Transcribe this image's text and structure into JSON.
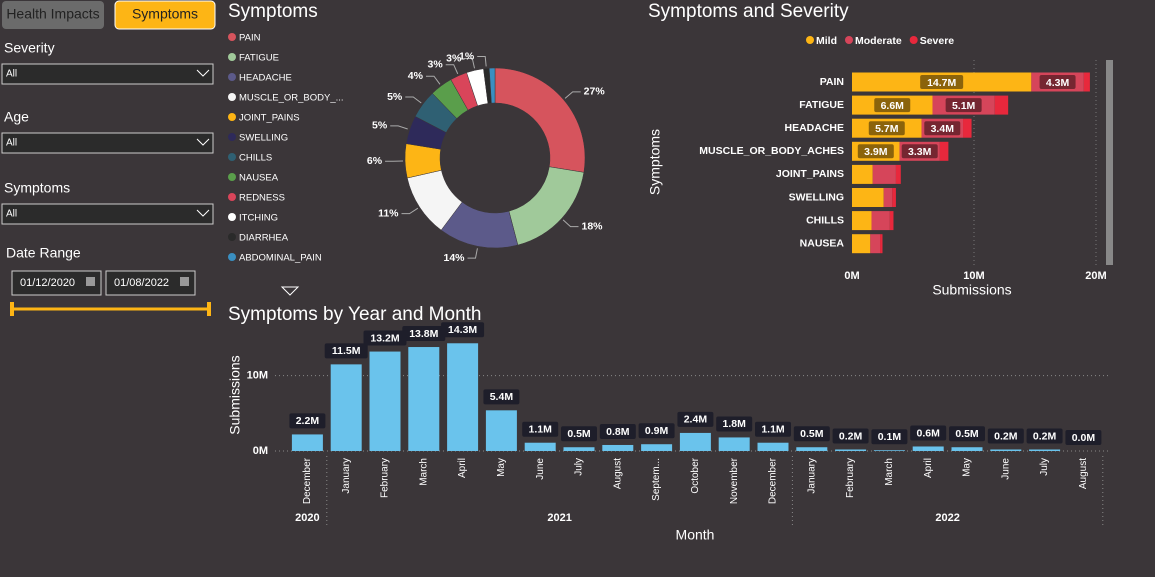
{
  "tabs": [
    "Health Impacts",
    "Symptoms"
  ],
  "filters": [
    {
      "label": "Severity",
      "value": "All"
    },
    {
      "label": "Age",
      "value": "All"
    },
    {
      "label": "Symptoms",
      "value": "All"
    }
  ],
  "date_range": {
    "label": "Date Range",
    "start": "01/12/2020",
    "end": "01/08/2022"
  },
  "chart_data": [
    {
      "type": "pie",
      "title": "Symptoms",
      "donut": true,
      "categories": [
        "PAIN",
        "FATIGUE",
        "HEADACHE",
        "MUSCLE_OR_BODY_...",
        "JOINT_PAINS",
        "SWELLING",
        "CHILLS",
        "NAUSEA",
        "REDNESS",
        "ITCHING",
        "DIARRHEA",
        "ABDOMINAL_PAIN"
      ],
      "values": [
        27,
        18,
        14,
        11,
        6,
        5,
        5,
        4,
        3,
        3,
        1,
        1
      ],
      "value_labels": [
        "27%",
        "18%",
        "14%",
        "11%",
        "6%",
        "5%",
        "5%",
        "4%",
        "3%",
        "3%",
        "1%",
        null
      ],
      "colors": [
        "#d6545d",
        "#a0c99a",
        "#5c5a8a",
        "#f5f5f5",
        "#fdb515",
        "#2e2a5a",
        "#2f6073",
        "#5a9e4b",
        "#d9455a",
        "#ffffff",
        "#2a2a2a",
        "#3a8fc1"
      ]
    },
    {
      "type": "hbar",
      "stacked": true,
      "title": "Symptoms and Severity",
      "x_label": "Submissions",
      "y_label": "Symptoms",
      "legend": "top",
      "categories": [
        "PAIN",
        "FATIGUE",
        "HEADACHE",
        "MUSCLE_OR_BODY_ACHES",
        "JOINT_PAINS",
        "SWELLING",
        "CHILLS",
        "NAUSEA"
      ],
      "series": [
        {
          "name": "Mild",
          "color": "#fdb515",
          "values": [
            14700000,
            6600000,
            5700000,
            3900000,
            1700000,
            2600000,
            1600000,
            1500000
          ],
          "value_labels": [
            "14.7M",
            "6.6M",
            "5.7M",
            "3.9M",
            null,
            null,
            null,
            null
          ]
        },
        {
          "name": "Moderate",
          "color": "#d6455a",
          "values": [
            4300000,
            5100000,
            3400000,
            3300000,
            1900000,
            700000,
            1500000,
            800000
          ],
          "value_labels": [
            "4.3M",
            "5.1M",
            "3.4M",
            "3.3M",
            null,
            null,
            null,
            null
          ]
        },
        {
          "name": "Severe",
          "color": "#e8283c",
          "values": [
            500000,
            1100000,
            700000,
            700000,
            400000,
            300000,
            300000,
            200000
          ]
        }
      ],
      "xlim": [
        0,
        20000000
      ],
      "xticks": [
        {
          "value": 0,
          "label": "0M"
        },
        {
          "value": 10000000,
          "label": "10M"
        },
        {
          "value": 20000000,
          "label": "20M"
        }
      ],
      "grid": true
    },
    {
      "type": "bar",
      "title": "Symptoms by Year and Month",
      "x_label": "Month",
      "y_label": "Submissions",
      "color": "#6ac3ec",
      "categories": [
        "December",
        "January",
        "February",
        "March",
        "April",
        "May",
        "June",
        "July",
        "August",
        "Septem...",
        "October",
        "November",
        "December",
        "January",
        "February",
        "March",
        "April",
        "May",
        "June",
        "July",
        "August"
      ],
      "year_groups": [
        {
          "label": "2020",
          "months": 1
        },
        {
          "label": "2021",
          "months": 12
        },
        {
          "label": "2022",
          "months": 8
        }
      ],
      "values": [
        2200000,
        11500000,
        13200000,
        13800000,
        14300000,
        5400000,
        1100000,
        500000,
        800000,
        900000,
        2400000,
        1800000,
        1100000,
        500000,
        200000,
        100000,
        600000,
        500000,
        200000,
        200000,
        0
      ],
      "value_labels": [
        "2.2M",
        "11.5M",
        "13.2M",
        "13.8M",
        "14.3M",
        "5.4M",
        "1.1M",
        "0.5M",
        "0.8M",
        "0.9M",
        "2.4M",
        "1.8M",
        "1.1M",
        "0.5M",
        "0.2M",
        "0.1M",
        "0.6M",
        "0.5M",
        "0.2M",
        "0.2M",
        "0.0M"
      ],
      "ylim": [
        0,
        15000000
      ],
      "yticks": [
        {
          "value": 0,
          "label": "0M"
        },
        {
          "value": 10000000,
          "label": "10M"
        }
      ],
      "grid": true
    }
  ]
}
